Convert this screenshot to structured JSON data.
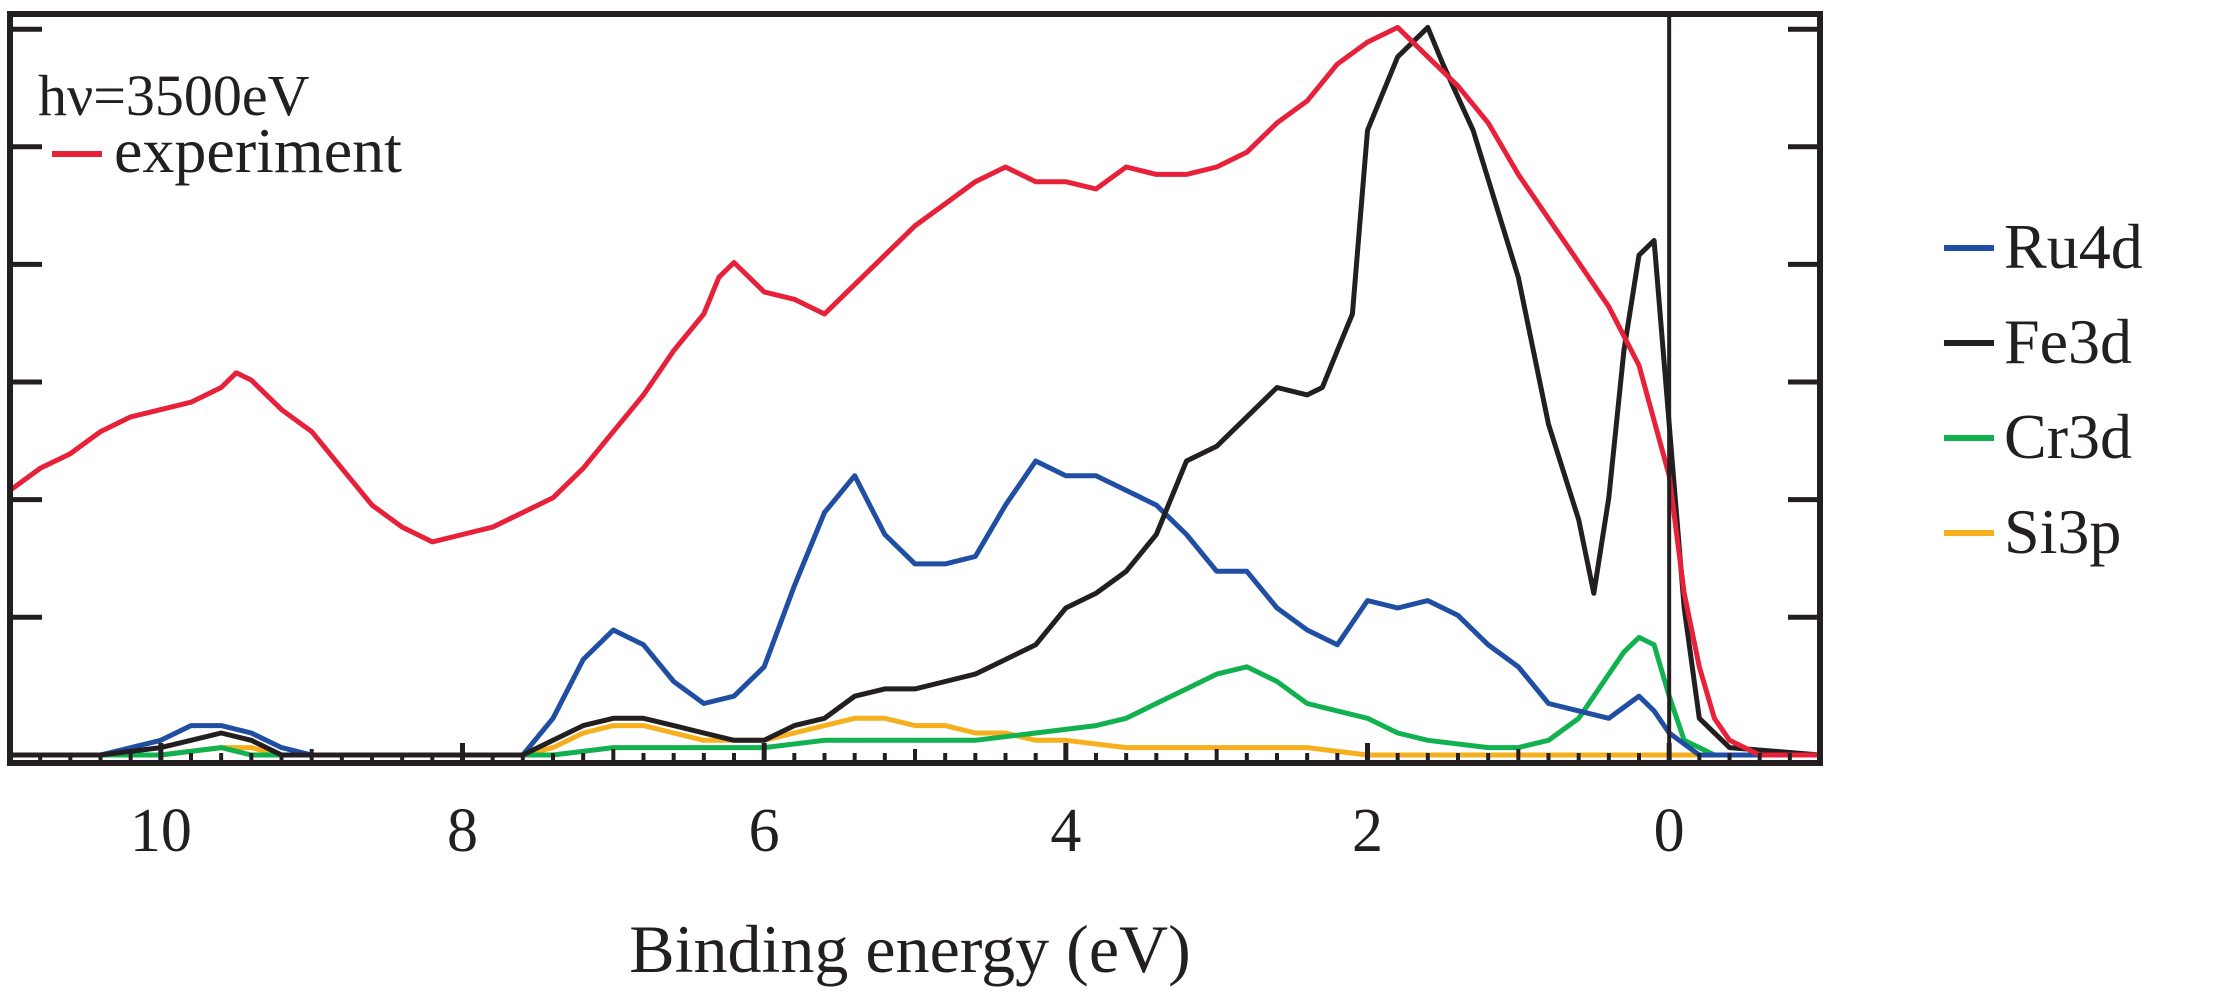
{
  "chart_data": {
    "type": "line",
    "xlabel": "Binding energy (eV)",
    "ylabel": "",
    "x_reversed": true,
    "xlim": [
      11.0,
      -1.0
    ],
    "ylim": [
      0,
      1.0
    ],
    "x_ticks": [
      10,
      8,
      6,
      4,
      2,
      0
    ],
    "x_tick_labels": [
      "10",
      "8",
      "6",
      "4",
      "2",
      "0"
    ],
    "y_tick_labels_shown": false,
    "vertical_line_at": 0,
    "annotations": [
      {
        "text": "hν=3500eV",
        "position": "top-left"
      }
    ],
    "legend": {
      "top_left": [
        {
          "name": "experiment",
          "color": "#e8213b"
        }
      ],
      "outside_right": [
        {
          "name": "Ru4d",
          "color": "#1f4ea3"
        },
        {
          "name": "Fe3d",
          "color": "#231f20"
        },
        {
          "name": "Cr3d",
          "color": "#12b150"
        },
        {
          "name": "Si3p",
          "color": "#f6b01d"
        }
      ]
    },
    "series": [
      {
        "name": "experiment",
        "color": "#e8213b",
        "x": [
          11.0,
          10.8,
          10.6,
          10.4,
          10.2,
          10.0,
          9.8,
          9.6,
          9.5,
          9.4,
          9.2,
          9.0,
          8.8,
          8.6,
          8.4,
          8.2,
          8.0,
          7.8,
          7.6,
          7.4,
          7.2,
          7.0,
          6.8,
          6.6,
          6.4,
          6.3,
          6.2,
          6.0,
          5.8,
          5.6,
          5.4,
          5.2,
          5.0,
          4.8,
          4.6,
          4.4,
          4.2,
          4.0,
          3.8,
          3.6,
          3.4,
          3.2,
          3.0,
          2.8,
          2.6,
          2.4,
          2.2,
          2.0,
          1.8,
          1.6,
          1.4,
          1.2,
          1.0,
          0.8,
          0.6,
          0.4,
          0.2,
          0.0,
          -0.1,
          -0.2,
          -0.3,
          -0.4,
          -0.6,
          -0.8,
          -1.0
        ],
        "y": [
          0.36,
          0.39,
          0.41,
          0.44,
          0.46,
          0.47,
          0.48,
          0.5,
          0.52,
          0.51,
          0.47,
          0.44,
          0.39,
          0.34,
          0.31,
          0.29,
          0.3,
          0.31,
          0.33,
          0.35,
          0.39,
          0.44,
          0.49,
          0.55,
          0.6,
          0.65,
          0.67,
          0.63,
          0.62,
          0.6,
          0.64,
          0.68,
          0.72,
          0.75,
          0.78,
          0.8,
          0.78,
          0.78,
          0.77,
          0.8,
          0.79,
          0.79,
          0.8,
          0.82,
          0.86,
          0.89,
          0.94,
          0.97,
          0.99,
          0.95,
          0.91,
          0.86,
          0.79,
          0.73,
          0.67,
          0.61,
          0.53,
          0.38,
          0.22,
          0.12,
          0.05,
          0.02,
          0.0,
          0.0,
          0.0
        ]
      },
      {
        "name": "Ru4d",
        "color": "#1f4ea3",
        "x": [
          11.0,
          10.4,
          10.0,
          9.8,
          9.6,
          9.4,
          9.2,
          9.0,
          8.0,
          7.6,
          7.4,
          7.2,
          7.0,
          6.8,
          6.6,
          6.4,
          6.2,
          6.0,
          5.8,
          5.6,
          5.4,
          5.2,
          5.0,
          4.8,
          4.6,
          4.4,
          4.2,
          4.0,
          3.8,
          3.6,
          3.4,
          3.2,
          3.0,
          2.8,
          2.6,
          2.4,
          2.2,
          2.0,
          1.8,
          1.6,
          1.4,
          1.2,
          1.0,
          0.8,
          0.6,
          0.4,
          0.2,
          0.1,
          0.0,
          -0.2,
          -1.0
        ],
        "y": [
          0.0,
          0.0,
          0.02,
          0.04,
          0.04,
          0.03,
          0.01,
          0.0,
          0.0,
          0.0,
          0.05,
          0.13,
          0.17,
          0.15,
          0.1,
          0.07,
          0.08,
          0.12,
          0.23,
          0.33,
          0.38,
          0.3,
          0.26,
          0.26,
          0.27,
          0.34,
          0.4,
          0.38,
          0.38,
          0.36,
          0.34,
          0.3,
          0.25,
          0.25,
          0.2,
          0.17,
          0.15,
          0.21,
          0.2,
          0.21,
          0.19,
          0.15,
          0.12,
          0.07,
          0.06,
          0.05,
          0.08,
          0.06,
          0.03,
          0.0,
          0.0
        ]
      },
      {
        "name": "Fe3d",
        "color": "#231f20",
        "x": [
          11.0,
          10.4,
          10.0,
          9.8,
          9.6,
          9.4,
          9.2,
          9.0,
          8.0,
          7.6,
          7.4,
          7.2,
          7.0,
          6.8,
          6.6,
          6.4,
          6.2,
          6.0,
          5.8,
          5.6,
          5.4,
          5.2,
          5.0,
          4.8,
          4.6,
          4.4,
          4.2,
          4.0,
          3.8,
          3.6,
          3.4,
          3.2,
          3.0,
          2.8,
          2.6,
          2.4,
          2.3,
          2.2,
          2.1,
          2.0,
          1.8,
          1.6,
          1.5,
          1.3,
          1.0,
          0.8,
          0.6,
          0.5,
          0.4,
          0.3,
          0.2,
          0.1,
          0.0,
          -0.1,
          -0.2,
          -0.4,
          -1.0
        ],
        "y": [
          0.0,
          0.0,
          0.01,
          0.02,
          0.03,
          0.02,
          0.0,
          0.0,
          0.0,
          0.0,
          0.02,
          0.04,
          0.05,
          0.05,
          0.04,
          0.03,
          0.02,
          0.02,
          0.04,
          0.05,
          0.08,
          0.09,
          0.09,
          0.1,
          0.11,
          0.13,
          0.15,
          0.2,
          0.22,
          0.25,
          0.3,
          0.4,
          0.42,
          0.46,
          0.5,
          0.49,
          0.5,
          0.55,
          0.6,
          0.85,
          0.95,
          0.99,
          0.94,
          0.85,
          0.65,
          0.45,
          0.32,
          0.22,
          0.35,
          0.55,
          0.68,
          0.7,
          0.45,
          0.2,
          0.05,
          0.01,
          0.0
        ]
      },
      {
        "name": "Cr3d",
        "color": "#12b150",
        "x": [
          11.0,
          10.0,
          9.6,
          9.4,
          9.2,
          8.0,
          7.4,
          7.0,
          6.6,
          6.2,
          6.0,
          5.6,
          5.2,
          5.0,
          4.6,
          4.2,
          3.8,
          3.6,
          3.4,
          3.2,
          3.0,
          2.8,
          2.6,
          2.4,
          2.2,
          2.0,
          1.8,
          1.6,
          1.2,
          1.0,
          0.8,
          0.6,
          0.5,
          0.4,
          0.3,
          0.2,
          0.1,
          0.0,
          -0.1,
          -0.3,
          -1.0
        ],
        "y": [
          0.0,
          0.0,
          0.01,
          0.0,
          0.0,
          0.0,
          0.0,
          0.01,
          0.01,
          0.01,
          0.01,
          0.02,
          0.02,
          0.02,
          0.02,
          0.03,
          0.04,
          0.05,
          0.07,
          0.09,
          0.11,
          0.12,
          0.1,
          0.07,
          0.06,
          0.05,
          0.03,
          0.02,
          0.01,
          0.01,
          0.02,
          0.05,
          0.08,
          0.11,
          0.14,
          0.16,
          0.15,
          0.08,
          0.02,
          0.0,
          0.0
        ]
      },
      {
        "name": "Si3p",
        "color": "#f6b01d",
        "x": [
          11.0,
          10.0,
          9.6,
          9.4,
          9.2,
          8.0,
          7.6,
          7.4,
          7.2,
          7.0,
          6.8,
          6.6,
          6.4,
          6.2,
          6.0,
          5.8,
          5.6,
          5.4,
          5.2,
          5.0,
          4.8,
          4.6,
          4.4,
          4.2,
          4.0,
          3.6,
          3.2,
          2.8,
          2.4,
          2.0,
          1.6,
          1.2,
          0.8,
          0.4,
          0.0,
          -0.4,
          -1.0
        ],
        "y": [
          0.0,
          0.0,
          0.01,
          0.01,
          0.0,
          0.0,
          0.0,
          0.01,
          0.03,
          0.04,
          0.04,
          0.03,
          0.02,
          0.02,
          0.02,
          0.03,
          0.04,
          0.05,
          0.05,
          0.04,
          0.04,
          0.03,
          0.03,
          0.02,
          0.02,
          0.01,
          0.01,
          0.01,
          0.01,
          0.0,
          0.0,
          0.0,
          0.0,
          0.0,
          0.0,
          0.0,
          0.0
        ]
      }
    ]
  }
}
